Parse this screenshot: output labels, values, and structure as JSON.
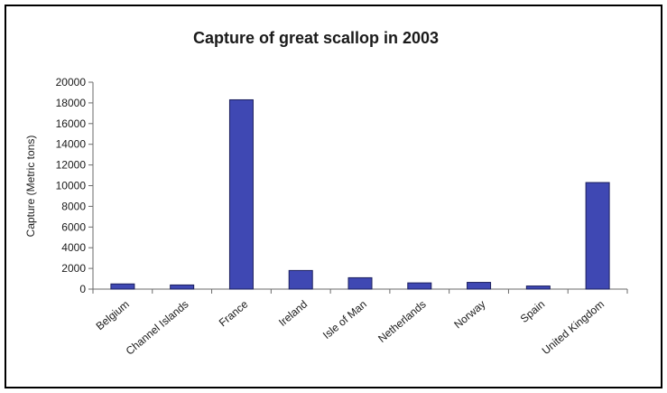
{
  "chart_data": {
    "type": "bar",
    "title": "Capture of great scallop in 2003",
    "xlabel": "",
    "ylabel": "Capture (Metric tons)",
    "ylim": [
      0,
      20000
    ],
    "yticks": [
      0,
      2000,
      4000,
      6000,
      8000,
      10000,
      12000,
      14000,
      16000,
      18000,
      20000
    ],
    "grid": false,
    "legend": "none",
    "categories": [
      "Belgium",
      "Channel Islands",
      "France",
      "Ireland",
      "Isle of Man",
      "Netherlands",
      "Norway",
      "Spain",
      "United Kingdom"
    ],
    "values": [
      500,
      400,
      18300,
      1800,
      1100,
      600,
      650,
      300,
      10300
    ],
    "colors": {
      "bar_fill": "#3f48b3",
      "bar_stroke": "#1b1f5e",
      "axis": "#6a6a6a",
      "frame": "#000000"
    }
  }
}
